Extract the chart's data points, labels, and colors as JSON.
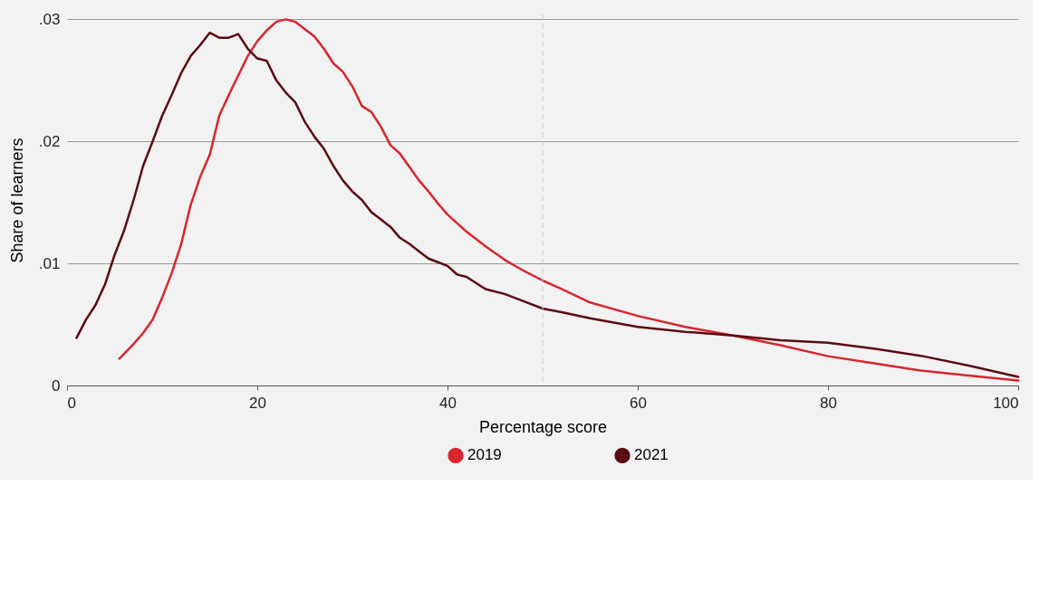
{
  "chart_data": {
    "type": "line",
    "xlabel": "Percentage score",
    "ylabel": "Share of learners",
    "xlim": [
      0,
      100
    ],
    "xticks": [
      0,
      20,
      40,
      60,
      80,
      100
    ],
    "ylim": [
      0,
      0.0304
    ],
    "yticks": [
      0,
      {
        "value": 0.01,
        "label": ".01"
      },
      {
        "value": 0.02,
        "label": ".02"
      },
      {
        "value": 0.03,
        "label": ".03"
      }
    ],
    "grid": "y",
    "legend": "bottom",
    "marker": "none",
    "line_style": "solid",
    "ref_lines": [
      {
        "axis": "x",
        "value": 50,
        "color": "#c8c8c8",
        "line_style": "dashed"
      }
    ],
    "series": [
      {
        "name": "2019",
        "color": "#d7262e",
        "x": [
          5.5,
          7,
          8,
          9,
          10,
          11,
          12,
          13,
          14,
          15,
          16,
          17,
          18,
          19,
          20,
          21,
          22,
          23,
          24,
          25,
          26,
          27,
          28,
          29,
          30,
          31,
          32,
          33,
          34,
          35,
          36,
          37,
          38,
          39,
          40,
          42,
          44,
          46,
          48,
          50,
          52,
          55,
          60,
          65,
          70,
          75,
          80,
          85,
          90,
          95,
          100
        ],
        "values": [
          0.0022,
          0.0034,
          0.0043,
          0.0054,
          0.0072,
          0.0092,
          0.0116,
          0.0148,
          0.0171,
          0.0189,
          0.0221,
          0.0238,
          0.0254,
          0.027,
          0.0282,
          0.0291,
          0.0298,
          0.03,
          0.0298,
          0.0292,
          0.0286,
          0.0276,
          0.0264,
          0.0257,
          0.0245,
          0.0229,
          0.0224,
          0.0212,
          0.0197,
          0.019,
          0.0179,
          0.0168,
          0.0159,
          0.0149,
          0.014,
          0.0126,
          0.0114,
          0.0103,
          0.0094,
          0.0086,
          0.0079,
          0.0068,
          0.0057,
          0.0048,
          0.0041,
          0.0033,
          0.0024,
          0.0018,
          0.0012,
          0.0008,
          0.0004
        ]
      },
      {
        "name": "2021",
        "color": "#5c0a12",
        "x": [
          1,
          2,
          3,
          4,
          5,
          6,
          7,
          8,
          9,
          10,
          11,
          12,
          13,
          14,
          15,
          16,
          17,
          18,
          19,
          20,
          21,
          22,
          23,
          24,
          25,
          26,
          27,
          28,
          29,
          30,
          31,
          32,
          33,
          34,
          35,
          36,
          37,
          38,
          39,
          40,
          41,
          42,
          44,
          46,
          48,
          50,
          52,
          55,
          60,
          65,
          70,
          75,
          80,
          85,
          90,
          95,
          100
        ],
        "values": [
          0.0039,
          0.0054,
          0.0066,
          0.0083,
          0.0107,
          0.0127,
          0.0152,
          0.018,
          0.02,
          0.0221,
          0.0238,
          0.0256,
          0.027,
          0.0279,
          0.0289,
          0.0285,
          0.0285,
          0.0288,
          0.0276,
          0.0268,
          0.0266,
          0.025,
          0.024,
          0.0232,
          0.0216,
          0.0204,
          0.0194,
          0.018,
          0.0168,
          0.0159,
          0.0152,
          0.0142,
          0.0136,
          0.013,
          0.0121,
          0.0116,
          0.011,
          0.0104,
          0.0101,
          0.0098,
          0.0091,
          0.0089,
          0.0079,
          0.0075,
          0.0069,
          0.0063,
          0.006,
          0.0055,
          0.0048,
          0.0044,
          0.0041,
          0.0037,
          0.0035,
          0.003,
          0.0024,
          0.0016,
          0.0007
        ]
      }
    ]
  }
}
